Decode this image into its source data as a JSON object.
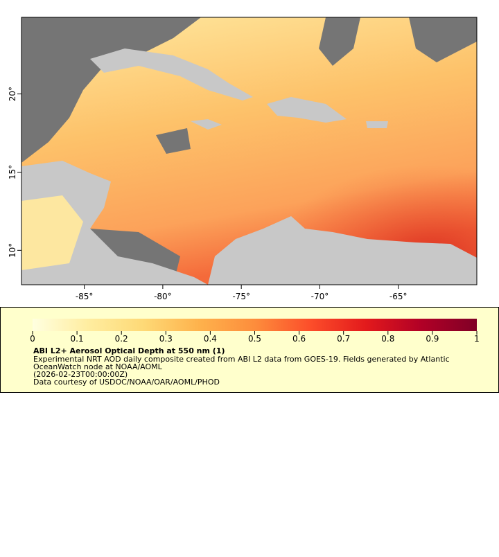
{
  "map": {
    "lonlim": [
      -89,
      -60
    ],
    "latlim": [
      7.8,
      24.9
    ],
    "lon_ticks": [
      {
        "value": -85,
        "label": "-85°"
      },
      {
        "value": -80,
        "label": "-80°"
      },
      {
        "value": -75,
        "label": "-75°"
      },
      {
        "value": -70,
        "label": "-70°"
      },
      {
        "value": -65,
        "label": "-65°"
      }
    ],
    "lat_ticks": [
      {
        "value": 10,
        "label": "10°"
      },
      {
        "value": 15,
        "label": "15°"
      },
      {
        "value": 20,
        "label": "20°"
      }
    ]
  },
  "colorbar": {
    "range": [
      0,
      1
    ],
    "ticks": [
      0,
      0.1,
      0.2,
      0.3,
      0.4,
      0.5,
      0.6,
      0.7,
      0.8,
      0.9,
      1
    ],
    "colors": [
      "#ffffe0",
      "#ffeda0",
      "#fed976",
      "#feb24c",
      "#fd8d3c",
      "#fc4e2a",
      "#e31a1c",
      "#b10026",
      "#800026"
    ]
  },
  "legend": {
    "title": "ABI L2+ Aerosol Optical Depth at 550 nm (1)",
    "lines": [
      "Experimental NRT AOD daily composite created from ABI L2 data from GOES-19. Fields generated by Atlantic",
      "OceanWatch node at NOAA/AOML",
      "(2026-02-23T00:00:00Z)",
      "Data courtesy of USDOC/NOAA/OAR/AOML/PHOD"
    ]
  }
}
